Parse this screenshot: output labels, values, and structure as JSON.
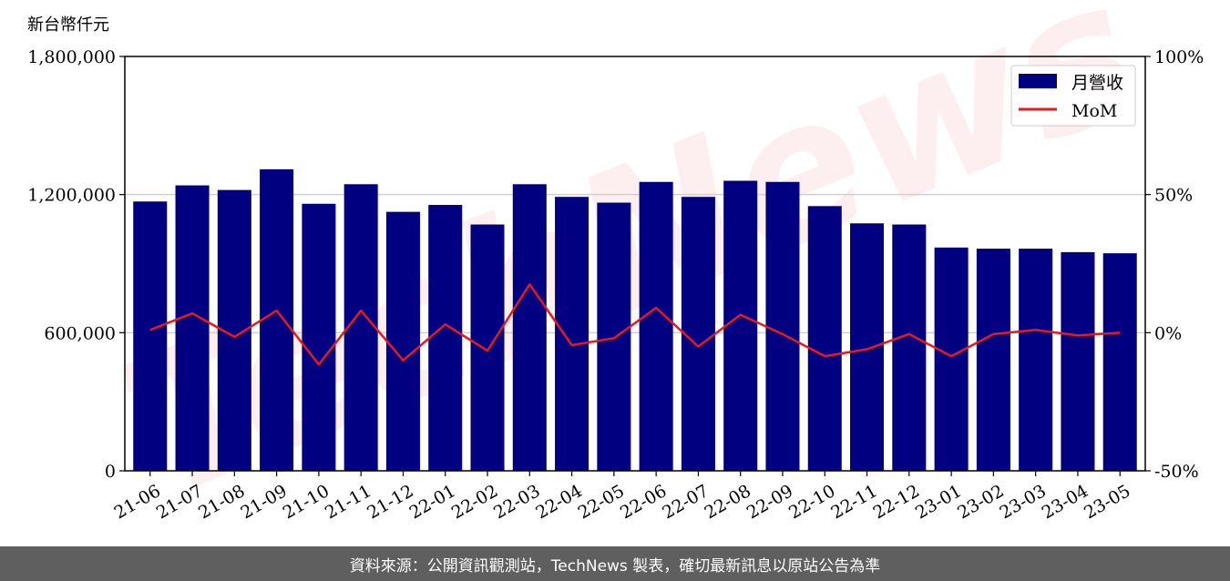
{
  "chart_data": {
    "type": "bar",
    "unit_label": "新台幣仟元",
    "categories": [
      "21-06",
      "21-07",
      "21-08",
      "21-09",
      "21-10",
      "21-11",
      "21-12",
      "22-01",
      "22-02",
      "22-03",
      "22-04",
      "22-05",
      "22-06",
      "22-07",
      "22-08",
      "22-09",
      "22-10",
      "22-11",
      "22-12",
      "23-01",
      "23-02",
      "23-03",
      "23-04",
      "23-05"
    ],
    "series": [
      {
        "name": "月營收",
        "axis": "left",
        "color": "#000080",
        "values": [
          1170000,
          1240000,
          1220000,
          1310000,
          1160000,
          1245000,
          1125000,
          1155000,
          1070000,
          1245000,
          1190000,
          1165000,
          1255000,
          1190000,
          1260000,
          1255000,
          1150000,
          1075000,
          1070000,
          970000,
          965000,
          965000,
          950000,
          945000
        ]
      },
      {
        "name": "MoM",
        "axis": "right",
        "color": "#e41a1c",
        "values": [
          1.0,
          7.0,
          -1.5,
          8.0,
          -11.5,
          8.0,
          -10.0,
          3.0,
          -6.5,
          17.5,
          -4.5,
          -2.0,
          9.0,
          -5.0,
          6.5,
          -0.5,
          -8.5,
          -6.0,
          -0.5,
          -8.5,
          -0.5,
          1.0,
          -1.0,
          0.0
        ]
      }
    ],
    "ylim_left": [
      0,
      1800000
    ],
    "yticks_left": [
      0,
      600000,
      1200000,
      1800000
    ],
    "ytick_labels_left": [
      "0",
      "600,000",
      "1,200,000",
      "1,800,000"
    ],
    "ylim_right": [
      -50,
      100
    ],
    "yticks_right": [
      -50,
      0,
      50,
      100
    ],
    "ytick_labels_right": [
      "-50%",
      "0%",
      "50%",
      "100%"
    ],
    "grid": "horizontal",
    "legend_position": "top-right",
    "watermark": "TechNews"
  },
  "footer": {
    "source_text": "資料來源：公開資訊觀測站，TechNews 製表，確切最新訊息以原站公告為準"
  }
}
